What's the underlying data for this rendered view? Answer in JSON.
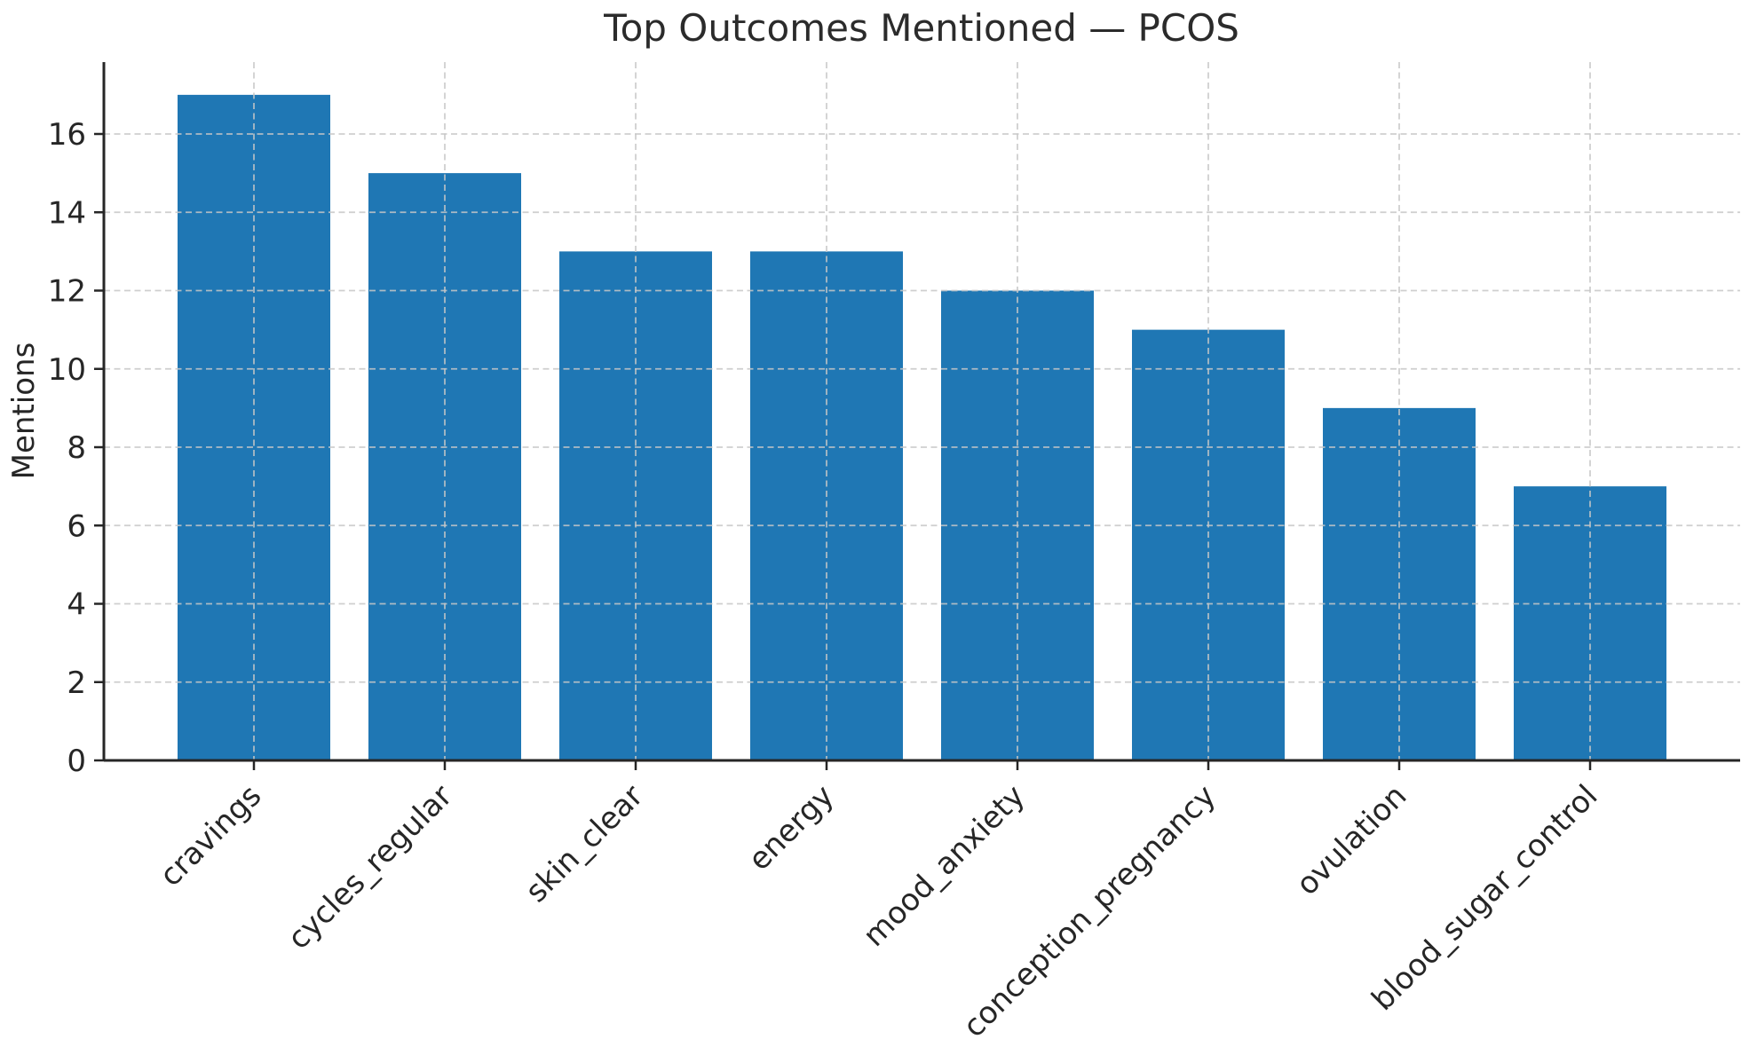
{
  "chart_data": {
    "type": "bar",
    "title": "Top Outcomes Mentioned — PCOS",
    "xlabel": "",
    "ylabel": "Mentions",
    "categories": [
      "cravings",
      "cycles_regular",
      "skin_clear",
      "energy",
      "mood_anxiety",
      "conception_pregnancy",
      "ovulation",
      "blood_sugar_control"
    ],
    "values": [
      17,
      15,
      13,
      13,
      12,
      11,
      9,
      7
    ],
    "yticks": [
      0,
      2,
      4,
      6,
      8,
      10,
      12,
      14,
      16
    ],
    "ylim": [
      0,
      17.85
    ],
    "grid": "both, dashed",
    "legend": "none",
    "bar_color": "#1f77b4",
    "grid_color": "#c7c7c7",
    "axis_color": "#262626",
    "background_color": "#ffffff",
    "x_tick_rotation_deg": 45
  }
}
